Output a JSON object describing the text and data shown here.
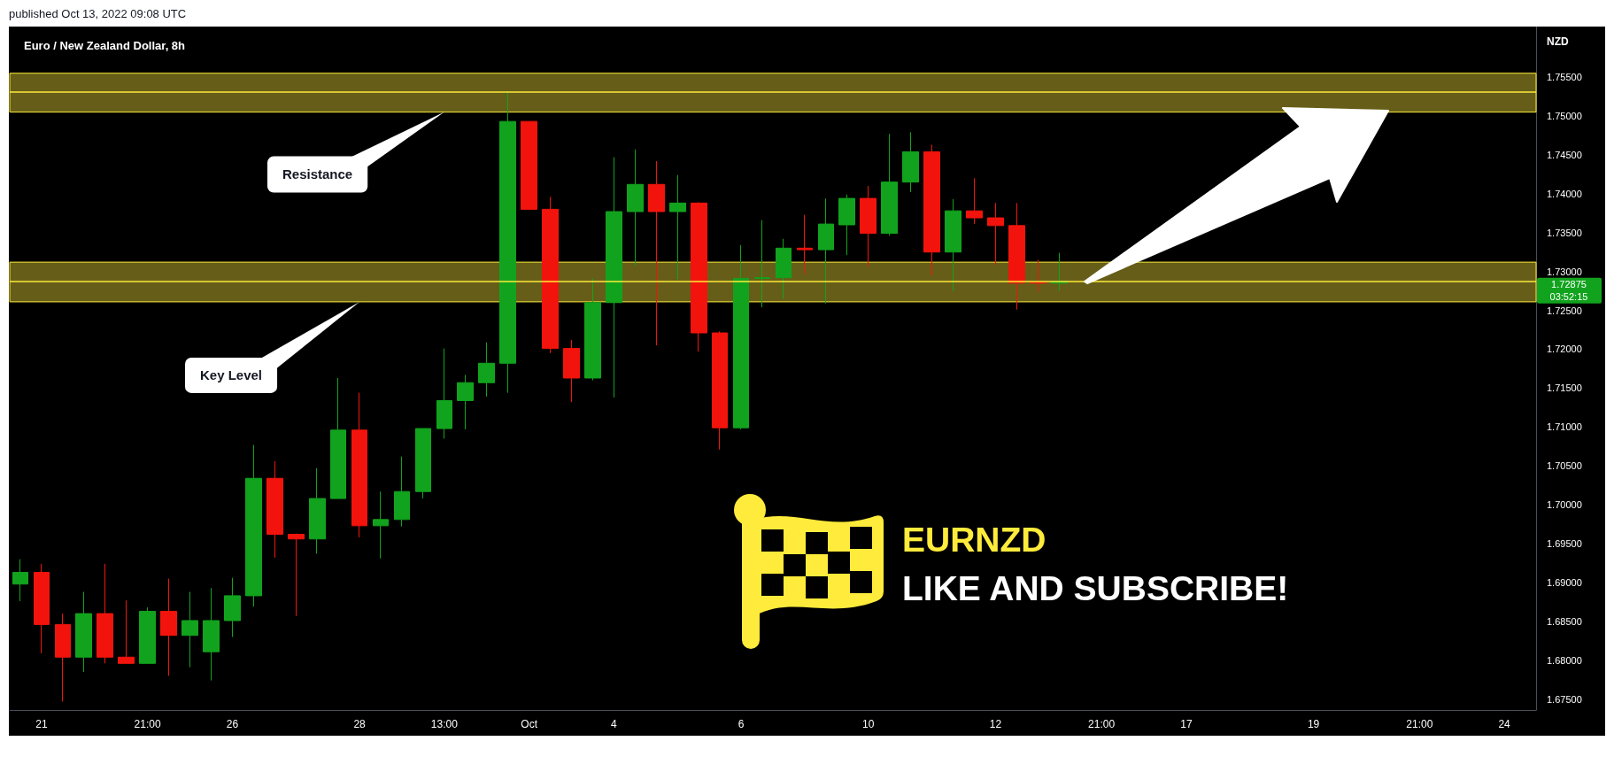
{
  "chart_data": {
    "type": "candlestick",
    "title": "Euro / New Zealand Dollar, 8h",
    "ylabel": "NZD",
    "categories": [
      null,
      "21",
      null,
      null,
      null,
      null,
      "21:00",
      null,
      null,
      null,
      "26",
      null,
      null,
      null,
      null,
      null,
      "28",
      null,
      null,
      null,
      "13:00",
      null,
      null,
      null,
      "Oct",
      null,
      null,
      null,
      "4",
      null,
      null,
      null,
      null,
      null,
      "6",
      null,
      null,
      null,
      null,
      null,
      "10",
      null,
      null,
      null,
      null,
      null,
      "12",
      null,
      null,
      null,
      null,
      "21:00",
      null,
      null,
      null,
      "17",
      null,
      null,
      null,
      null,
      null,
      "19",
      null,
      null,
      null,
      null,
      "21:00",
      null,
      null,
      null,
      "24",
      null
    ],
    "ohlc": [
      [
        1.6898,
        1.693,
        1.6876,
        1.6913
      ],
      [
        1.6913,
        1.6924,
        1.6809,
        1.6846
      ],
      [
        1.6846,
        1.686,
        1.6747,
        1.6804
      ],
      [
        1.6804,
        1.6888,
        1.6785,
        1.686
      ],
      [
        1.686,
        1.6924,
        1.6796,
        1.6804
      ],
      [
        1.6804,
        1.6877,
        1.6796,
        1.6796
      ],
      [
        1.6796,
        1.6868,
        1.6796,
        1.6863
      ],
      [
        1.6863,
        1.6905,
        1.678,
        1.6832
      ],
      [
        1.6832,
        1.6888,
        1.6791,
        1.6851
      ],
      [
        1.6811,
        1.6893,
        1.6774,
        1.6851
      ],
      [
        1.6851,
        1.6906,
        1.683,
        1.6883
      ],
      [
        1.6883,
        1.7077,
        1.6869,
        1.7034
      ],
      [
        1.7034,
        1.7056,
        1.6932,
        1.6962
      ],
      [
        1.6962,
        1.6963,
        1.6857,
        1.6956
      ],
      [
        1.6956,
        1.7047,
        1.6937,
        1.7008
      ],
      [
        1.7008,
        1.7163,
        1.7008,
        1.7096
      ],
      [
        1.7096,
        1.7144,
        1.6958,
        1.6973
      ],
      [
        1.6973,
        1.7017,
        1.6931,
        1.6981
      ],
      [
        1.6981,
        1.7062,
        1.6972,
        1.7017
      ],
      [
        1.7017,
        1.7098,
        1.7008,
        1.7098
      ],
      [
        1.7098,
        1.7201,
        1.7085,
        1.7134
      ],
      [
        1.7134,
        1.7167,
        1.7097,
        1.7157
      ],
      [
        1.7157,
        1.7209,
        1.7139,
        1.7182
      ],
      [
        1.7182,
        1.7532,
        1.7144,
        1.7493
      ],
      [
        1.7493,
        1.7493,
        1.738,
        1.738
      ],
      [
        1.738,
        1.7396,
        1.7195,
        1.7201
      ],
      [
        1.7201,
        1.7212,
        1.7132,
        1.7163
      ],
      [
        1.7163,
        1.7291,
        1.716,
        1.726
      ],
      [
        1.726,
        1.7447,
        1.7138,
        1.7377
      ],
      [
        1.7377,
        1.7457,
        1.7308,
        1.7412
      ],
      [
        1.7412,
        1.7442,
        1.7205,
        1.7377
      ],
      [
        1.7377,
        1.7424,
        1.729,
        1.7388
      ],
      [
        1.7388,
        1.7389,
        1.7197,
        1.7221
      ],
      [
        1.7221,
        1.7223,
        1.7071,
        1.7099
      ],
      [
        1.7099,
        1.7334,
        1.7097,
        1.7291
      ],
      [
        1.7291,
        1.7366,
        1.7254,
        1.7292
      ],
      [
        1.7292,
        1.7342,
        1.7265,
        1.733
      ],
      [
        1.733,
        1.7373,
        1.7297,
        1.7328
      ],
      [
        1.7328,
        1.7394,
        1.7259,
        1.7361
      ],
      [
        1.736,
        1.7399,
        1.7321,
        1.7394
      ],
      [
        1.7394,
        1.741,
        1.7306,
        1.7349
      ],
      [
        1.7349,
        1.7477,
        1.7346,
        1.7415
      ],
      [
        1.7415,
        1.7479,
        1.7402,
        1.7454
      ],
      [
        1.7454,
        1.7463,
        1.7295,
        1.7325
      ],
      [
        1.7325,
        1.7393,
        1.7275,
        1.7378
      ],
      [
        1.7378,
        1.742,
        1.7361,
        1.7369
      ],
      [
        1.7369,
        1.7388,
        1.7309,
        1.7359
      ],
      [
        1.7359,
        1.7388,
        1.7251,
        1.7285
      ],
      [
        1.7286,
        1.7315,
        1.7274,
        1.7285
      ],
      [
        1.7285,
        1.7324,
        1.7275,
        1.72875
      ],
      null,
      null,
      null,
      null,
      null,
      null,
      null,
      null,
      null,
      null,
      null,
      null,
      null,
      null,
      null,
      null,
      null,
      null,
      null,
      null,
      null,
      null
    ],
    "colors": [
      "#12a31e",
      "#f2140c",
      "#f2140c",
      "#12a31e",
      "#f2140c",
      "#f2140c",
      "#12a31e",
      "#f2140c",
      "#12a31e",
      "#12a31e",
      "#12a31e",
      "#12a31e",
      "#f2140c",
      "#f2140c",
      "#12a31e",
      "#12a31e",
      "#f2140c",
      "#12a31e",
      "#12a31e",
      "#12a31e",
      "#12a31e",
      "#12a31e",
      "#12a31e",
      "#12a31e",
      "#f2140c",
      "#f2140c",
      "#f2140c",
      "#12a31e",
      "#12a31e",
      "#12a31e",
      "#f2140c",
      "#12a31e",
      "#f2140c",
      "#f2140c",
      "#12a31e",
      "#12a31e",
      "#12a31e",
      "#f2140c",
      "#12a31e",
      "#12a31e",
      "#f2140c",
      "#12a31e",
      "#12a31e",
      "#f2140c",
      "#12a31e",
      "#f2140c",
      "#f2140c",
      "#f2140c",
      "#f2140c",
      "#12a31e",
      null,
      null,
      null,
      null,
      null,
      null,
      null,
      null,
      null,
      null,
      null,
      null,
      null,
      null,
      null,
      null,
      null,
      null,
      null,
      null,
      null,
      null
    ],
    "ylim": [
      1.6736,
      1.7615
    ],
    "yticks": [
      {
        "value": 1.675,
        "label": "1.67500"
      },
      {
        "value": 1.68,
        "label": "1.68000"
      },
      {
        "value": 1.685,
        "label": "1.68500"
      },
      {
        "value": 1.69,
        "label": "1.69000"
      },
      {
        "value": 1.695,
        "label": "1.69500"
      },
      {
        "value": 1.7,
        "label": "1.70000"
      },
      {
        "value": 1.705,
        "label": "1.70500"
      },
      {
        "value": 1.71,
        "label": "1.71000"
      },
      {
        "value": 1.715,
        "label": "1.71500"
      },
      {
        "value": 1.72,
        "label": "1.72000"
      },
      {
        "value": 1.725,
        "label": "1.72500"
      },
      {
        "value": 1.73,
        "label": "1.73000"
      },
      {
        "value": 1.735,
        "label": "1.73500"
      },
      {
        "value": 1.74,
        "label": "1.74000"
      },
      {
        "value": 1.745,
        "label": "1.74500"
      },
      {
        "value": 1.75,
        "label": "1.75000"
      },
      {
        "value": 1.755,
        "label": "1.75500"
      }
    ],
    "bands": [
      {
        "axis": "y",
        "from": 1.7505,
        "to": 1.7555,
        "color": "#ffeb3b"
      },
      {
        "axis": "y",
        "from": 1.7261,
        "to": 1.7312,
        "color": "#ffeb3b"
      }
    ],
    "ref_lines": [
      {
        "axis": "y",
        "value": 1.7531,
        "color": "#ffeb3b"
      },
      {
        "axis": "y",
        "value": 1.7287,
        "color": "#ffeb3b"
      }
    ],
    "annotations": [
      "published Oct 13, 2022 09:08 UTC",
      "Resistance",
      "Key Level",
      "EURNZD",
      "LIKE AND SUBSCRIBE!",
      "1.72875",
      "03:52:15"
    ]
  }
}
